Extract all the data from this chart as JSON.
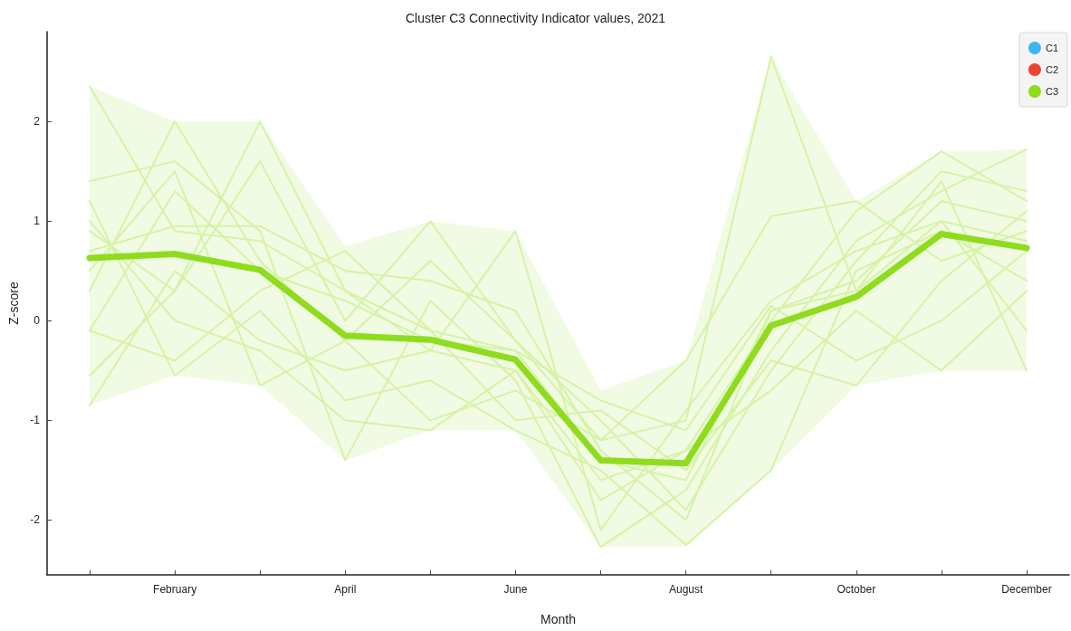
{
  "chart_data": {
    "type": "line",
    "title": "Cluster C3 Connectivity Indicator values, 2021",
    "xlabel": "Month",
    "ylabel": "Z-score",
    "categories": [
      null,
      "February",
      null,
      "April",
      null,
      "June",
      null,
      "August",
      null,
      "October",
      null,
      "December"
    ],
    "ylim": [
      -2.55,
      2.9
    ],
    "yticks": [
      -2,
      -1,
      0,
      1,
      2
    ],
    "grid": false,
    "legend": "top right",
    "marker": "none",
    "line_style": "solid",
    "series": [
      {
        "name": "C1",
        "color": "#3bb6f2",
        "values": [
          null,
          null,
          null,
          null,
          null,
          null,
          null,
          null,
          null,
          null,
          null,
          null
        ]
      },
      {
        "name": "C2",
        "color": "#ee4330",
        "values": [
          null,
          null,
          null,
          null,
          null,
          null,
          null,
          null,
          null,
          null,
          null,
          null
        ]
      },
      {
        "name": "C3",
        "color": "#8fdc1e",
        "values": [
          0.63,
          0.67,
          0.51,
          -0.15,
          -0.19,
          -0.39,
          -1.4,
          -1.43,
          -0.05,
          0.24,
          0.87,
          0.73
        ],
        "lower": [
          -0.85,
          -0.55,
          -0.65,
          -1.4,
          -1.1,
          -1.1,
          -2.27,
          -2.27,
          -1.5,
          -0.65,
          -0.5,
          -0.5
        ],
        "upper": [
          2.35,
          2.0,
          2.0,
          0.75,
          1.0,
          0.9,
          -0.7,
          -0.4,
          2.65,
          1.2,
          1.7,
          1.72
        ]
      },
      {
        "color": "#d5f3a6",
        "values": [
          2.35,
          0.9,
          0.8,
          0.3,
          -0.1,
          -0.3,
          -1.4,
          -1.6,
          0.1,
          0.4,
          1.2,
          1.0
        ]
      },
      {
        "color": "#d5f3a6",
        "values": [
          0.3,
          2.0,
          0.6,
          -0.2,
          0.6,
          -0.2,
          -1.2,
          -1.0,
          2.65,
          0.3,
          1.0,
          0.8
        ]
      },
      {
        "color": "#d5f3a6",
        "values": [
          0.9,
          0.3,
          2.0,
          0.3,
          -0.3,
          -0.5,
          -1.6,
          -1.3,
          0.0,
          1.1,
          1.7,
          1.2
        ]
      },
      {
        "color": "#d5f3a6",
        "values": [
          1.4,
          1.6,
          0.9,
          -1.4,
          0.2,
          -0.6,
          -2.27,
          -1.7,
          -0.3,
          0.8,
          1.3,
          1.72
        ]
      },
      {
        "color": "#d5f3a6",
        "values": [
          -0.55,
          0.3,
          1.6,
          0.0,
          1.0,
          -0.2,
          -1.0,
          -1.9,
          -0.5,
          0.6,
          1.5,
          1.3
        ]
      },
      {
        "color": "#d5f3a6",
        "values": [
          -0.85,
          0.5,
          -0.2,
          -0.5,
          -0.3,
          0.9,
          -2.1,
          -0.9,
          0.2,
          0.7,
          1.0,
          -0.1
        ]
      },
      {
        "color": "#d5f3a6",
        "values": [
          1.2,
          -0.55,
          0.1,
          -0.8,
          -0.6,
          -1.1,
          -1.5,
          -2.25,
          -1.5,
          0.5,
          0.9,
          0.4
        ]
      },
      {
        "color": "#d5f3a6",
        "values": [
          0.5,
          1.5,
          -0.65,
          -0.2,
          -1.0,
          -0.7,
          -1.2,
          -0.4,
          1.05,
          1.2,
          0.6,
          0.9
        ]
      },
      {
        "color": "#d5f3a6",
        "values": [
          -0.1,
          -0.4,
          0.3,
          0.7,
          -0.1,
          -1.0,
          -0.9,
          -1.5,
          -0.4,
          -0.65,
          0.4,
          1.1
        ]
      },
      {
        "color": "#d5f3a6",
        "values": [
          1.0,
          0.0,
          -0.3,
          -1.0,
          -1.1,
          -0.5,
          -1.8,
          -1.3,
          -0.7,
          0.1,
          -0.5,
          0.3
        ]
      },
      {
        "color": "#d5f3a6",
        "values": [
          0.7,
          0.95,
          0.95,
          0.5,
          0.4,
          0.1,
          -1.3,
          -2.0,
          0.1,
          0.3,
          1.4,
          -0.5
        ]
      },
      {
        "color": "#d5f3a6",
        "values": [
          -0.1,
          1.3,
          0.5,
          0.2,
          -0.2,
          -0.3,
          -0.8,
          -1.1,
          0.15,
          -0.4,
          0.0,
          0.7
        ]
      }
    ]
  }
}
